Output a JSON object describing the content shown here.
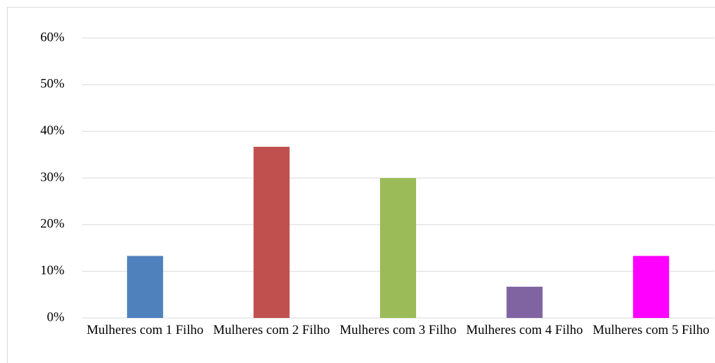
{
  "chart_data": {
    "type": "bar",
    "categories": [
      "Mulheres com 1 Filho",
      "Mulheres com 2 Filho",
      "Mulheres com 3 Filho",
      "Mulheres com 4 Filho",
      "Mulheres com 5 Filho"
    ],
    "values": [
      13.3,
      36.7,
      30.0,
      6.7,
      13.3
    ],
    "colors": [
      "#4f81bd",
      "#c0504d",
      "#9bbb59",
      "#8064a2",
      "#ff00ff"
    ],
    "ylim": [
      0,
      60
    ],
    "yticks": [
      {
        "value": 0,
        "label": "0%"
      },
      {
        "value": 10,
        "label": "10%"
      },
      {
        "value": 20,
        "label": "20%"
      },
      {
        "value": 30,
        "label": "30%"
      },
      {
        "value": 40,
        "label": "40%"
      },
      {
        "value": 50,
        "label": "50%"
      },
      {
        "value": 60,
        "label": "60%"
      }
    ],
    "grid": true
  }
}
